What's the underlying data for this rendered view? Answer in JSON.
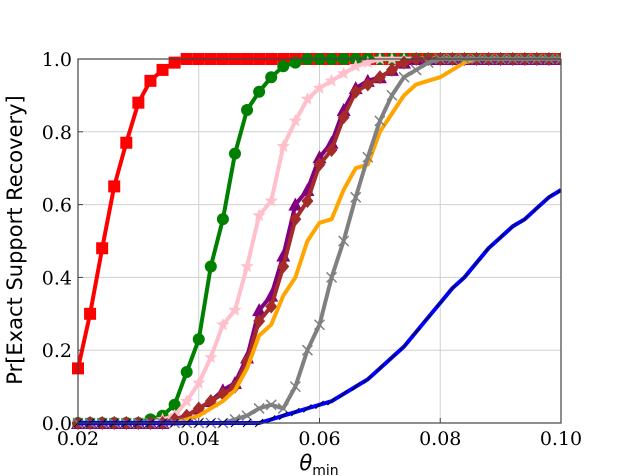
{
  "chart_data": {
    "type": "line",
    "xlabel": "θ",
    "xlabel_sub": "min",
    "ylabel": "Pr[Exact Support Recovery]",
    "xlim": [
      0.02,
      0.1
    ],
    "ylim": [
      0.0,
      1.0
    ],
    "grid": true,
    "xticks": [
      0.02,
      0.04,
      0.06,
      0.08,
      0.1
    ],
    "xtick_labels": [
      "0.02",
      "0.04",
      "0.06",
      "0.08",
      "0.10"
    ],
    "yticks": [
      0.0,
      0.2,
      0.4,
      0.6,
      0.8,
      1.0
    ],
    "ytick_labels": [
      "0.0",
      "0.2",
      "0.4",
      "0.6",
      "0.8",
      "1.0"
    ],
    "series": [
      {
        "color": "#ff0000",
        "marker": "square",
        "x": [
          0.02,
          0.022,
          0.024,
          0.026,
          0.028,
          0.03,
          0.032,
          0.034,
          0.036,
          0.038,
          0.04,
          0.042,
          0.044,
          0.046,
          0.048,
          0.05,
          0.052,
          0.054,
          0.056,
          0.058,
          0.06,
          0.062,
          0.064,
          0.066,
          0.068,
          0.07,
          0.072,
          0.074,
          0.076,
          0.078,
          0.08,
          0.082,
          0.084,
          0.086,
          0.088,
          0.09,
          0.092,
          0.094,
          0.096,
          0.098,
          0.1
        ],
        "y": [
          0.15,
          0.3,
          0.48,
          0.65,
          0.77,
          0.88,
          0.94,
          0.97,
          0.99,
          1.0,
          1.0,
          1.0,
          1.0,
          1.0,
          1.0,
          1.0,
          1.0,
          1.0,
          1.0,
          1.0,
          1.0,
          1.0,
          1.0,
          1.0,
          1.0,
          1.0,
          1.0,
          1.0,
          1.0,
          1.0,
          1.0,
          1.0,
          1.0,
          1.0,
          1.0,
          1.0,
          1.0,
          1.0,
          1.0,
          1.0,
          1.0
        ]
      },
      {
        "color": "#008000",
        "marker": "circle",
        "x": [
          0.02,
          0.022,
          0.024,
          0.026,
          0.028,
          0.03,
          0.032,
          0.034,
          0.036,
          0.038,
          0.04,
          0.042,
          0.044,
          0.046,
          0.048,
          0.05,
          0.052,
          0.054,
          0.056,
          0.058,
          0.06,
          0.062,
          0.064,
          0.066,
          0.068,
          0.07,
          0.072,
          0.074,
          0.076,
          0.078,
          0.08,
          0.082,
          0.084,
          0.086,
          0.088,
          0.09,
          0.092,
          0.094,
          0.096,
          0.098,
          0.1
        ],
        "y": [
          0.0,
          0.0,
          0.0,
          0.0,
          0.0,
          0.0,
          0.01,
          0.02,
          0.05,
          0.14,
          0.23,
          0.43,
          0.56,
          0.74,
          0.86,
          0.91,
          0.95,
          0.98,
          0.99,
          1.0,
          1.0,
          1.0,
          1.0,
          1.0,
          1.0,
          1.0,
          1.0,
          1.0,
          1.0,
          1.0,
          1.0,
          1.0,
          1.0,
          1.0,
          1.0,
          1.0,
          1.0,
          1.0,
          1.0,
          1.0,
          1.0
        ]
      },
      {
        "color": "#ffc0cb",
        "marker": "star",
        "x": [
          0.02,
          0.022,
          0.024,
          0.026,
          0.028,
          0.03,
          0.032,
          0.034,
          0.036,
          0.038,
          0.04,
          0.042,
          0.044,
          0.046,
          0.048,
          0.05,
          0.052,
          0.054,
          0.056,
          0.058,
          0.06,
          0.062,
          0.064,
          0.066,
          0.068,
          0.07,
          0.072,
          0.074,
          0.076,
          0.078,
          0.08,
          0.082,
          0.084,
          0.086,
          0.088,
          0.09,
          0.092,
          0.094,
          0.096,
          0.098,
          0.1
        ],
        "y": [
          0.0,
          0.0,
          0.0,
          0.0,
          0.0,
          0.0,
          0.0,
          0.01,
          0.02,
          0.06,
          0.11,
          0.18,
          0.27,
          0.31,
          0.43,
          0.57,
          0.61,
          0.76,
          0.83,
          0.89,
          0.92,
          0.94,
          0.96,
          0.98,
          0.99,
          1.0,
          1.0,
          1.0,
          1.0,
          1.0,
          1.0,
          1.0,
          1.0,
          1.0,
          1.0,
          1.0,
          1.0,
          1.0,
          1.0,
          1.0,
          1.0
        ]
      },
      {
        "color": "#800080",
        "marker": "triangle",
        "x": [
          0.02,
          0.022,
          0.024,
          0.026,
          0.028,
          0.03,
          0.032,
          0.034,
          0.036,
          0.038,
          0.04,
          0.042,
          0.044,
          0.046,
          0.048,
          0.05,
          0.052,
          0.054,
          0.056,
          0.058,
          0.06,
          0.062,
          0.064,
          0.066,
          0.068,
          0.07,
          0.072,
          0.074,
          0.076,
          0.078,
          0.08,
          0.082,
          0.084,
          0.086,
          0.088,
          0.09,
          0.092,
          0.094,
          0.096,
          0.098,
          0.1
        ],
        "y": [
          0.0,
          0.0,
          0.0,
          0.0,
          0.0,
          0.0,
          0.0,
          0.0,
          0.01,
          0.02,
          0.04,
          0.06,
          0.09,
          0.11,
          0.18,
          0.31,
          0.35,
          0.46,
          0.6,
          0.64,
          0.73,
          0.77,
          0.86,
          0.92,
          0.94,
          0.95,
          0.97,
          0.99,
          1.0,
          1.0,
          1.0,
          1.0,
          1.0,
          1.0,
          1.0,
          1.0,
          1.0,
          1.0,
          1.0,
          1.0,
          1.0
        ]
      },
      {
        "color": "#a52a2a",
        "marker": "diamond",
        "x": [
          0.02,
          0.022,
          0.024,
          0.026,
          0.028,
          0.03,
          0.032,
          0.034,
          0.036,
          0.038,
          0.04,
          0.042,
          0.044,
          0.046,
          0.048,
          0.05,
          0.052,
          0.054,
          0.056,
          0.058,
          0.06,
          0.062,
          0.064,
          0.066,
          0.068,
          0.07,
          0.072,
          0.074,
          0.076,
          0.078,
          0.08,
          0.082,
          0.084,
          0.086,
          0.088,
          0.09,
          0.092,
          0.094,
          0.096,
          0.098,
          0.1
        ],
        "y": [
          0.0,
          0.0,
          0.0,
          0.0,
          0.0,
          0.0,
          0.0,
          0.0,
          0.01,
          0.02,
          0.04,
          0.06,
          0.08,
          0.1,
          0.17,
          0.28,
          0.32,
          0.43,
          0.56,
          0.61,
          0.71,
          0.75,
          0.84,
          0.91,
          0.93,
          0.95,
          0.97,
          0.99,
          1.0,
          1.0,
          1.0,
          1.0,
          1.0,
          1.0,
          1.0,
          1.0,
          1.0,
          1.0,
          1.0,
          1.0,
          1.0
        ]
      },
      {
        "color": "#ffa500",
        "marker": "none",
        "x": [
          0.02,
          0.022,
          0.024,
          0.026,
          0.028,
          0.03,
          0.032,
          0.034,
          0.036,
          0.038,
          0.04,
          0.042,
          0.044,
          0.046,
          0.048,
          0.05,
          0.052,
          0.054,
          0.056,
          0.058,
          0.06,
          0.062,
          0.064,
          0.066,
          0.068,
          0.07,
          0.072,
          0.074,
          0.076,
          0.078,
          0.08,
          0.082,
          0.084,
          0.086,
          0.088,
          0.09,
          0.092,
          0.094,
          0.096,
          0.098,
          0.1
        ],
        "y": [
          0.0,
          0.0,
          0.0,
          0.0,
          0.0,
          0.0,
          0.0,
          0.0,
          0.0,
          0.01,
          0.02,
          0.04,
          0.06,
          0.09,
          0.15,
          0.24,
          0.27,
          0.35,
          0.4,
          0.5,
          0.55,
          0.56,
          0.64,
          0.7,
          0.71,
          0.8,
          0.85,
          0.9,
          0.93,
          0.94,
          0.95,
          0.97,
          0.99,
          1.0,
          1.0,
          1.0,
          1.0,
          1.0,
          1.0,
          1.0,
          1.0
        ]
      },
      {
        "color": "#808080",
        "marker": "x",
        "x": [
          0.02,
          0.022,
          0.024,
          0.026,
          0.028,
          0.03,
          0.032,
          0.034,
          0.036,
          0.038,
          0.04,
          0.042,
          0.044,
          0.046,
          0.048,
          0.05,
          0.052,
          0.054,
          0.056,
          0.058,
          0.06,
          0.062,
          0.064,
          0.066,
          0.068,
          0.07,
          0.072,
          0.074,
          0.076,
          0.078,
          0.08,
          0.082,
          0.084,
          0.086,
          0.088,
          0.09,
          0.092,
          0.094,
          0.096,
          0.098,
          0.1
        ],
        "y": [
          0.0,
          0.0,
          0.0,
          0.0,
          0.0,
          0.0,
          0.0,
          0.0,
          0.0,
          0.0,
          0.0,
          0.0,
          0.0,
          0.01,
          0.02,
          0.04,
          0.05,
          0.04,
          0.1,
          0.2,
          0.27,
          0.4,
          0.5,
          0.62,
          0.73,
          0.83,
          0.9,
          0.95,
          0.97,
          0.99,
          1.0,
          1.0,
          1.0,
          1.0,
          1.0,
          1.0,
          1.0,
          1.0,
          1.0,
          1.0,
          1.0
        ]
      },
      {
        "color": "#0000ff",
        "marker": "tick",
        "x": [
          0.02,
          0.022,
          0.024,
          0.026,
          0.028,
          0.03,
          0.032,
          0.034,
          0.036,
          0.038,
          0.04,
          0.042,
          0.044,
          0.046,
          0.048,
          0.05,
          0.052,
          0.054,
          0.056,
          0.058,
          0.06,
          0.062,
          0.064,
          0.066,
          0.068,
          0.07,
          0.072,
          0.074,
          0.076,
          0.078,
          0.08,
          0.082,
          0.084,
          0.086,
          0.088,
          0.09,
          0.092,
          0.094,
          0.096,
          0.098,
          0.1
        ],
        "y": [
          0.0,
          0.0,
          0.0,
          0.0,
          0.0,
          0.0,
          0.0,
          0.0,
          0.0,
          0.0,
          0.0,
          0.0,
          0.0,
          0.0,
          0.0,
          0.0,
          0.01,
          0.02,
          0.03,
          0.04,
          0.05,
          0.06,
          0.08,
          0.1,
          0.12,
          0.15,
          0.18,
          0.21,
          0.25,
          0.29,
          0.33,
          0.37,
          0.4,
          0.44,
          0.48,
          0.51,
          0.54,
          0.56,
          0.59,
          0.62,
          0.64
        ]
      }
    ]
  }
}
